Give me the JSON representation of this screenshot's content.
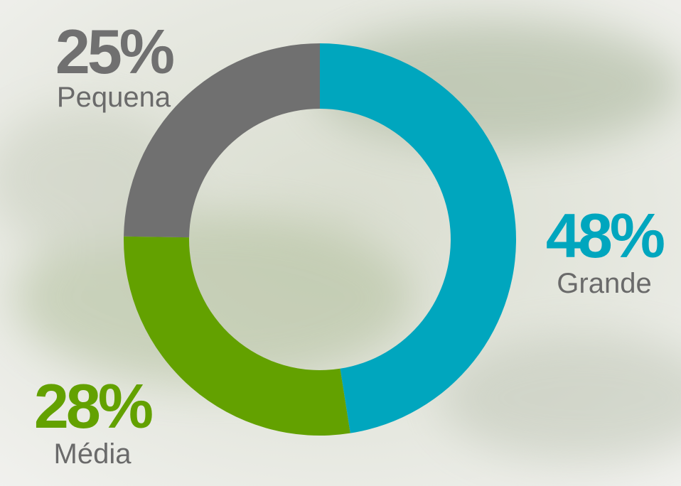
{
  "chart_data": {
    "type": "donut",
    "categories": [
      "Grande",
      "Média",
      "Pequena"
    ],
    "values": [
      48,
      28,
      25
    ],
    "value_labels": [
      "48%",
      "28%",
      "25%"
    ],
    "colors": [
      "#00a6be",
      "#63a100",
      "#707070"
    ]
  }
}
